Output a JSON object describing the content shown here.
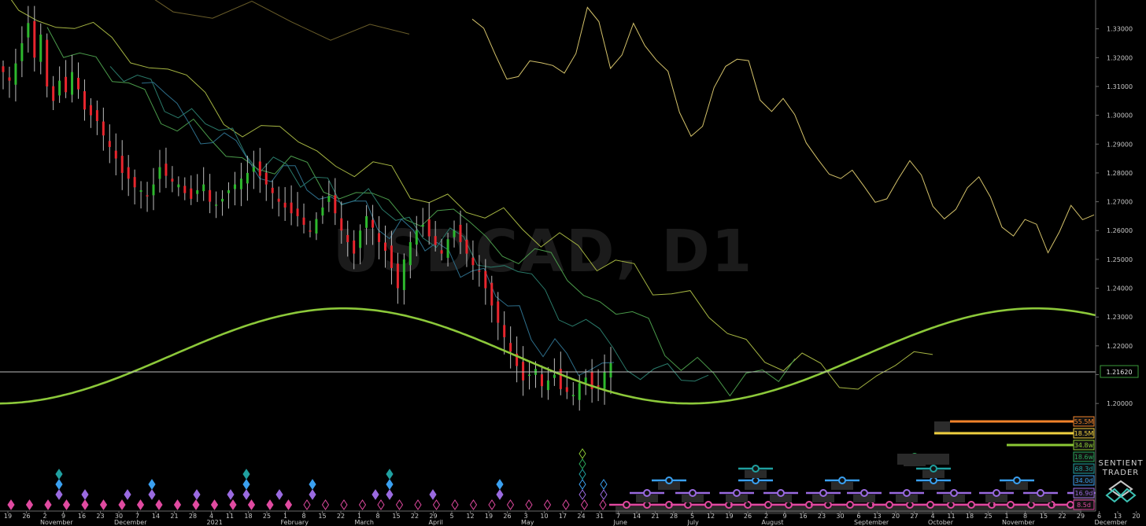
{
  "watermark": "USDCAD, D1",
  "brand": {
    "line1": "SENTIENT",
    "line2": "TRADER"
  },
  "chart_data": {
    "type": "line",
    "ylim": [
      1.1935,
      1.34
    ],
    "y_ticks": [
      "1.33000",
      "1.32000",
      "1.31000",
      "1.30000",
      "1.29000",
      "1.28000",
      "1.27000",
      "1.26000",
      "1.25000",
      "1.24000",
      "1.23000",
      "1.22000",
      "1.21000",
      "1.20000"
    ],
    "current_price": "1.21620",
    "x_day_labels": [
      "19",
      "26",
      "2",
      "9",
      "16",
      "23",
      "30",
      "7",
      "14",
      "21",
      "28",
      "4",
      "11",
      "18",
      "25",
      "1",
      "8",
      "15",
      "22",
      "1",
      "8",
      "15",
      "22",
      "29",
      "5",
      "12",
      "19",
      "26",
      "3",
      "10",
      "17",
      "24",
      "31",
      "7",
      "14",
      "21",
      "28",
      "5",
      "12",
      "19",
      "26",
      "2",
      "9",
      "16",
      "23",
      "30",
      "6",
      "13",
      "20",
      "27",
      "4",
      "11",
      "18",
      "25",
      "1",
      "8",
      "15",
      "22",
      "29",
      "6",
      "13",
      "20"
    ],
    "x_month_labels": [
      "November",
      "December",
      "2021",
      "February",
      "March",
      "April",
      "May",
      "June",
      "July",
      "August",
      "September",
      "October",
      "November",
      "December"
    ],
    "candles_close_path": [
      1.315,
      1.312,
      1.318,
      1.325,
      1.332,
      1.32,
      1.328,
      1.31,
      1.305,
      1.312,
      1.308,
      1.315,
      1.309,
      1.302,
      1.3,
      1.298,
      1.293,
      1.289,
      1.285,
      1.28,
      1.278,
      1.275,
      1.274,
      1.272,
      1.276,
      1.282,
      1.279,
      1.277,
      1.276,
      1.273,
      1.271,
      1.274,
      1.276,
      1.27,
      1.269,
      1.271,
      1.274,
      1.276,
      1.278,
      1.28,
      1.282,
      1.279,
      1.276,
      1.273,
      1.27,
      1.268,
      1.266,
      1.265,
      1.262,
      1.26,
      1.264,
      1.268,
      1.272,
      1.266,
      1.26,
      1.256,
      1.252,
      1.26,
      1.265,
      1.261,
      1.256,
      1.253,
      1.247,
      1.24,
      1.25,
      1.256,
      1.26,
      1.262,
      1.258,
      1.255,
      1.252,
      1.257,
      1.26,
      1.256,
      1.252,
      1.248,
      1.246,
      1.24,
      1.234,
      1.228,
      1.223,
      1.218,
      1.213,
      1.208,
      1.21,
      1.212,
      1.206,
      1.208,
      1.21,
      1.205,
      1.204,
      1.203,
      1.207,
      1.209,
      1.205,
      1.206,
      1.211,
      1.214
    ],
    "sine_wave": {
      "name": "",
      "center": 1.2165,
      "amplitude": 0.0165,
      "trough_day_index": 258,
      "period_days": 262
    },
    "projected_lines": [
      {
        "name": "",
        "color": "#6b5e2a",
        "points": [
          1.342,
          1.338,
          1.336,
          1.33,
          1.325
        ]
      },
      {
        "name": "",
        "color": "#d4c26a",
        "points": [
          1.33,
          1.325,
          1.31,
          1.32,
          1.315,
          1.335,
          1.32,
          1.328,
          1.322,
          1.3,
          1.295,
          1.32,
          1.315,
          1.305,
          1.298,
          1.285,
          1.28,
          1.272,
          1.275,
          1.281,
          1.27,
          1.268,
          1.276,
          1.265,
          1.26,
          1.255,
          1.268,
          1.264
        ]
      },
      {
        "name": "",
        "color": "#a5b542",
        "points": [
          1.342,
          1.335,
          1.33,
          1.325,
          1.32,
          1.31,
          1.3,
          1.295,
          1.29,
          1.285,
          1.28,
          1.275,
          1.27,
          1.265,
          1.262,
          1.256,
          1.25,
          1.245,
          1.24,
          1.23,
          1.22,
          1.215,
          1.21,
          1.208,
          1.212,
          1.216
        ]
      },
      {
        "name": "",
        "color": "#4a9a4a",
        "points": [
          1.33,
          1.32,
          1.315,
          1.305,
          1.298,
          1.29,
          1.285,
          1.282,
          1.28,
          1.275,
          1.27,
          1.265,
          1.268,
          1.26,
          1.255,
          1.25,
          1.245,
          1.235,
          1.23,
          1.22,
          1.212,
          1.206,
          1.21,
          1.215
        ]
      },
      {
        "name": "",
        "color": "#2a7a6a",
        "points": [
          1.32,
          1.31,
          1.305,
          1.3,
          1.295,
          1.288,
          1.282,
          1.279,
          1.275,
          1.272,
          1.268,
          1.262,
          1.258,
          1.254,
          1.25,
          1.245,
          1.238,
          1.23,
          1.222,
          1.215,
          1.21,
          1.208,
          1.212
        ]
      },
      {
        "name": "",
        "color": "#2d6e8a",
        "points": [
          1.315,
          1.305,
          1.298,
          1.292,
          1.288,
          1.282,
          1.279,
          1.276,
          1.272,
          1.268,
          1.264,
          1.26,
          1.256,
          1.252,
          1.245,
          1.24,
          1.23,
          1.22,
          1.215,
          1.212,
          1.216
        ]
      }
    ],
    "cycle_bars": [
      {
        "label": "55.5M",
        "color": "#f0822a",
        "text_color": "#f0822a"
      },
      {
        "label": "18.5M",
        "color": "#f0d040",
        "text_color": "#f0d040"
      },
      {
        "label": "34.8w",
        "color": "#8bc834",
        "text_color": "#8bc834"
      },
      {
        "label": "18.6w",
        "color": "#2aa85a",
        "text_color": "#2aa85a"
      },
      {
        "label": "68.3d",
        "color": "#20a0a0",
        "text_color": "#20a0a0"
      },
      {
        "label": "34.0d",
        "color": "#3aa0f0",
        "text_color": "#3aa0f0"
      },
      {
        "label": "16.9d",
        "color": "#9a6ae0",
        "text_color": "#9a6ae0"
      },
      {
        "label": "8.5d",
        "color": "#e04aa0",
        "text_color": "#e04aa0"
      }
    ]
  }
}
